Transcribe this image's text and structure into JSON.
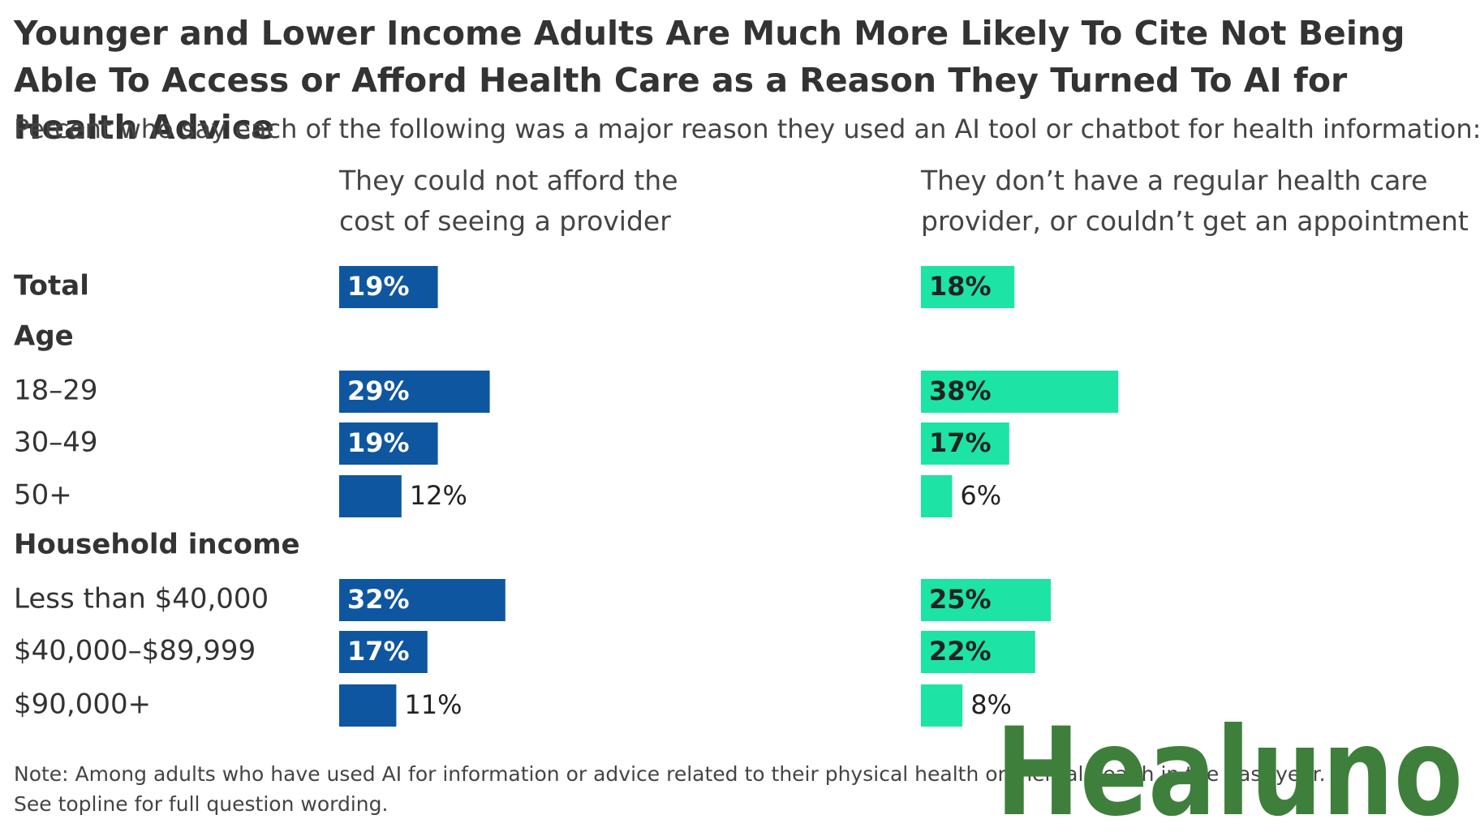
{
  "chart_data": {
    "type": "bar",
    "title": "Younger and Lower Income Adults Are Much More Likely To Cite Not Being Able To Access or Afford Health Care as a Reason They Turned To AI for Health Advice",
    "subtitle": "Percent who say each of the following was a major reason they used an AI tool or chatbot for health information:",
    "categories": [
      "Total",
      "Age",
      "18–29",
      "30–49",
      "50+",
      "Household income",
      "Less than $40,000",
      "$40,000–$89,999",
      "$90,000+"
    ],
    "series": [
      {
        "name": "They could not afford the cost of seeing a provider",
        "color": "#0f56a0",
        "values": [
          19,
          null,
          29,
          19,
          12,
          null,
          32,
          17,
          11
        ],
        "value_labels": [
          "19%",
          null,
          "29%",
          "19%",
          "12%",
          null,
          "32%",
          "17%",
          "11%"
        ]
      },
      {
        "name": "They don’t have a regular health care provider, or couldn’t get an appointment",
        "color": "#1de3a4",
        "values": [
          18,
          null,
          38,
          17,
          6,
          null,
          25,
          22,
          8
        ],
        "value_labels": [
          "18%",
          null,
          "38%",
          "17%",
          "6%",
          null,
          "25%",
          "22%",
          "8%"
        ]
      }
    ],
    "note": "Note: Among adults who have used AI for information or advice related to their physical health or mental health in the past year.",
    "note2": "See topline for full question wording.",
    "watermark": "Healuno"
  }
}
